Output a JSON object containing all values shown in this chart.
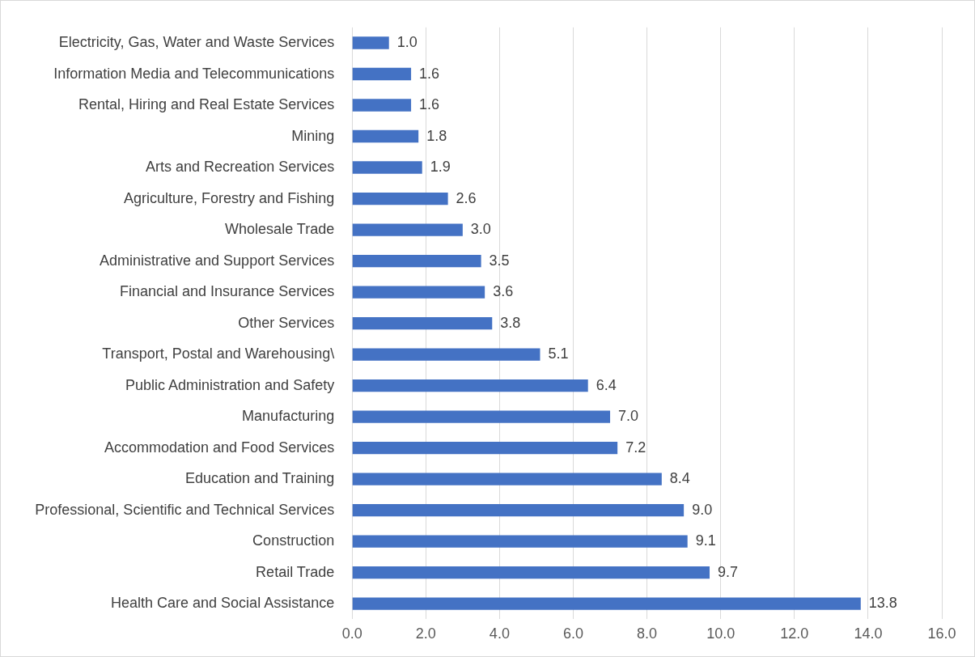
{
  "chart_data": {
    "type": "bar",
    "orientation": "horizontal",
    "color": "#4472c4",
    "categories": [
      "Electricity, Gas, Water and Waste Services",
      "Information Media and Telecommunications",
      "Rental, Hiring and Real Estate Services",
      "Mining",
      "Arts and Recreation Services",
      "Agriculture, Forestry and Fishing",
      "Wholesale Trade",
      "Administrative and Support Services",
      "Financial and Insurance Services",
      "Other Services",
      "Transport, Postal and Warehousing\\",
      "Public Administration and Safety",
      "Manufacturing",
      "Accommodation and Food Services",
      "Education and Training",
      "Professional, Scientific and Technical Services",
      "Construction",
      "Retail Trade",
      "Health Care and Social Assistance"
    ],
    "values": [
      1.0,
      1.6,
      1.6,
      1.8,
      1.9,
      2.6,
      3.0,
      3.5,
      3.6,
      3.8,
      5.1,
      6.4,
      7.0,
      7.2,
      8.4,
      9.0,
      9.1,
      9.7,
      13.8
    ],
    "value_labels": [
      "1.0",
      "1.6",
      "1.6",
      "1.8",
      "1.9",
      "2.6",
      "3.0",
      "3.5",
      "3.6",
      "3.8",
      "5.1",
      "6.4",
      "7.0",
      "7.2",
      "8.4",
      "9.0",
      "9.1",
      "9.7",
      "13.8"
    ],
    "xlim": [
      0,
      16
    ],
    "xticks": [
      {
        "value": 0,
        "label": "0.0"
      },
      {
        "value": 2,
        "label": "2.0"
      },
      {
        "value": 4,
        "label": "4.0"
      },
      {
        "value": 6,
        "label": "6.0"
      },
      {
        "value": 8,
        "label": "8.0"
      },
      {
        "value": 10,
        "label": "10.0"
      },
      {
        "value": 12,
        "label": "12.0"
      },
      {
        "value": 14,
        "label": "14.0"
      },
      {
        "value": 16,
        "label": "16.0"
      }
    ],
    "grid": "x",
    "legend": false
  }
}
